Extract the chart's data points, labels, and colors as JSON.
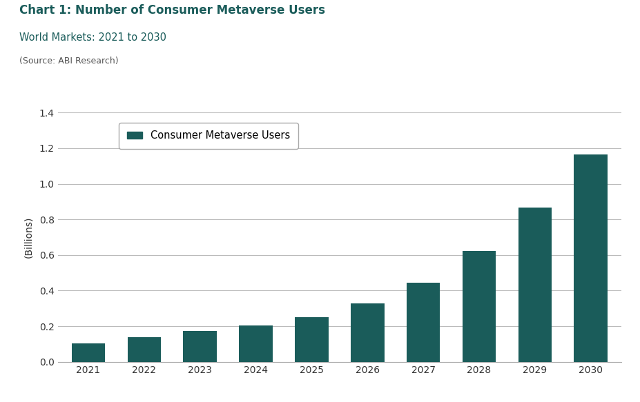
{
  "title": "Chart 1: Number of Consumer Metaverse Users",
  "subtitle": "World Markets: 2021 to 2030",
  "source": "(Source: ABI Research)",
  "ylabel": "(Billions)",
  "years": [
    2021,
    2022,
    2023,
    2024,
    2025,
    2026,
    2027,
    2028,
    2029,
    2030
  ],
  "values": [
    0.105,
    0.138,
    0.172,
    0.205,
    0.252,
    0.328,
    0.445,
    0.622,
    0.865,
    1.165
  ],
  "bar_color": "#1a5c5a",
  "ylim": [
    0,
    1.4
  ],
  "yticks": [
    0.0,
    0.2,
    0.4,
    0.6,
    0.8,
    1.0,
    1.2,
    1.4
  ],
  "legend_label": "Consumer Metaverse Users",
  "title_color": "#1a5c5a",
  "subtitle_color": "#1a5c5a",
  "source_color": "#555555",
  "background_color": "#ffffff",
  "grid_color": "#bbbbbb",
  "title_fontsize": 12,
  "subtitle_fontsize": 10.5,
  "source_fontsize": 9,
  "ylabel_fontsize": 10,
  "tick_fontsize": 10,
  "legend_fontsize": 10.5
}
